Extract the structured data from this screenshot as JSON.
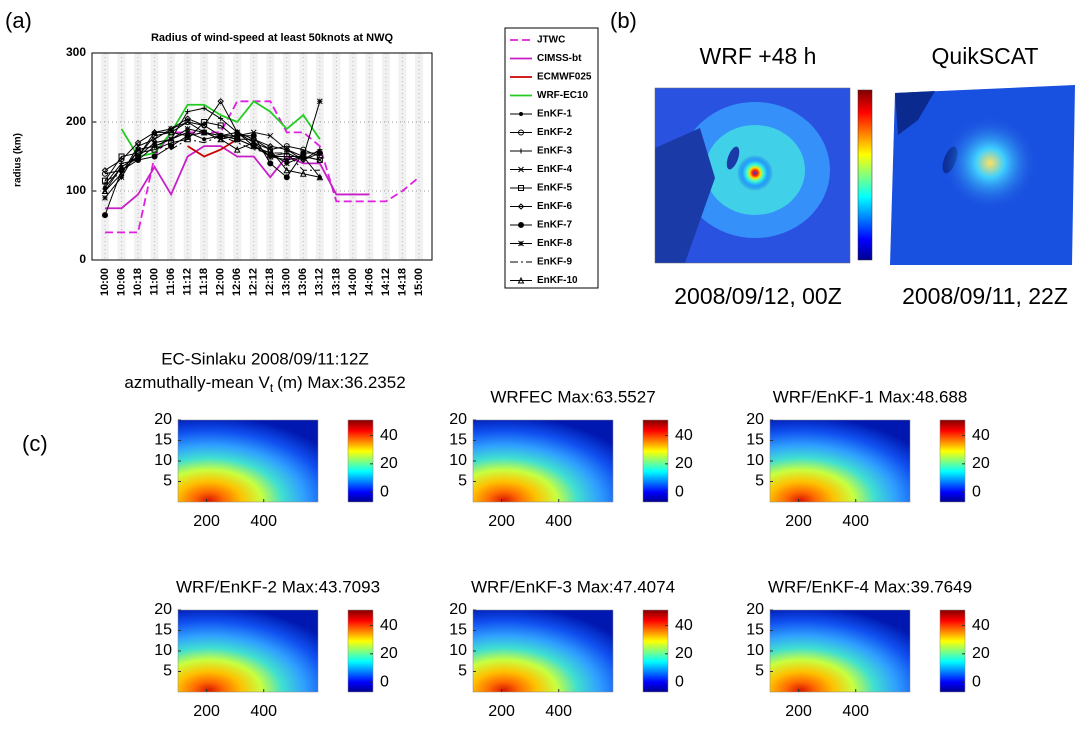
{
  "panel_labels": [
    "(a)",
    "(b)",
    "(c)"
  ],
  "chart_data": [
    {
      "type": "line",
      "title": "Radius of wind-speed at least 50knots at NWQ",
      "y_label": "radius (km)",
      "categories": [
        "10:00",
        "10:06",
        "10:18",
        "11:00",
        "11:06",
        "11:12",
        "11:18",
        "12:00",
        "12:06",
        "12:12",
        "12:18",
        "13:00",
        "13:06",
        "13:12",
        "13:18",
        "14:00",
        "14:06",
        "14:12",
        "14:18",
        "15:00"
      ],
      "ylim": [
        0,
        300
      ],
      "yticks": [
        0,
        100,
        200,
        300
      ],
      "grid": true,
      "series": [
        {
          "name": "JTWC",
          "color": "#e020e0",
          "dash": "dashed",
          "marker": "none",
          "values": [
            40,
            40,
            40,
            150,
            185,
            185,
            185,
            185,
            230,
            230,
            230,
            185,
            185,
            165,
            85,
            85,
            85,
            85,
            100,
            120
          ]
        },
        {
          "name": "CIMSS-bt",
          "color": "#c81ec8",
          "marker": "none",
          "values": [
            75,
            75,
            95,
            135,
            95,
            150,
            165,
            165,
            150,
            150,
            120,
            150,
            140,
            140,
            95,
            95,
            95,
            null,
            null,
            null
          ]
        },
        {
          "name": "ECMWF025",
          "color": "#cc0000",
          "marker": "none",
          "values": [
            null,
            null,
            null,
            null,
            null,
            165,
            150,
            160,
            175,
            null,
            null,
            null,
            null,
            null,
            null,
            null,
            null,
            null,
            null,
            null
          ]
        },
        {
          "name": "WRF-EC10",
          "color": "#22cc22",
          "marker": "none",
          "values": [
            null,
            190,
            150,
            155,
            185,
            225,
            225,
            210,
            200,
            230,
            215,
            190,
            210,
            175,
            null,
            null,
            null,
            null,
            null,
            null
          ]
        },
        {
          "name": "EnKF-1",
          "color": "#000000",
          "marker": "point",
          "values": [
            105,
            135,
            150,
            170,
            175,
            185,
            175,
            180,
            175,
            165,
            150,
            145,
            150,
            120,
            null,
            null,
            null,
            null,
            null,
            null
          ]
        },
        {
          "name": "EnKF-2",
          "color": "#000000",
          "marker": "circle",
          "values": [
            125,
            130,
            150,
            180,
            185,
            200,
            195,
            180,
            175,
            175,
            160,
            165,
            160,
            150,
            null,
            null,
            null,
            null,
            null,
            null
          ]
        },
        {
          "name": "EnKF-3",
          "color": "#000000",
          "marker": "plus",
          "values": [
            110,
            140,
            145,
            165,
            175,
            215,
            220,
            205,
            185,
            170,
            150,
            155,
            145,
            160,
            null,
            null,
            null,
            null,
            null,
            null
          ]
        },
        {
          "name": "EnKF-4",
          "color": "#000000",
          "marker": "x",
          "values": [
            100,
            125,
            165,
            175,
            190,
            200,
            185,
            175,
            180,
            185,
            180,
            160,
            150,
            145,
            null,
            null,
            null,
            null,
            null,
            null
          ]
        },
        {
          "name": "EnKF-5",
          "color": "#000000",
          "marker": "square",
          "values": [
            115,
            150,
            155,
            160,
            170,
            175,
            200,
            195,
            175,
            165,
            150,
            150,
            150,
            145,
            null,
            null,
            null,
            null,
            null,
            null
          ]
        },
        {
          "name": "EnKF-6",
          "color": "#000000",
          "marker": "diamond",
          "values": [
            130,
            145,
            170,
            185,
            190,
            205,
            195,
            230,
            185,
            175,
            165,
            160,
            145,
            155,
            null,
            null,
            null,
            null,
            null,
            null
          ]
        },
        {
          "name": "EnKF-7",
          "color": "#000000",
          "marker": "dot",
          "values": [
            65,
            130,
            145,
            150,
            165,
            180,
            185,
            180,
            180,
            180,
            140,
            120,
            155,
            155,
            null,
            null,
            null,
            null,
            null,
            null
          ]
        },
        {
          "name": "EnKF-8",
          "color": "#000000",
          "marker": "star",
          "values": [
            90,
            120,
            160,
            165,
            175,
            190,
            185,
            180,
            185,
            165,
            155,
            140,
            150,
            230,
            null,
            null,
            null,
            null,
            null,
            null
          ]
        },
        {
          "name": "EnKF-9",
          "color": "#000000",
          "dash": "dashdot",
          "marker": "none",
          "values": [
            115,
            125,
            160,
            165,
            160,
            175,
            170,
            180,
            170,
            160,
            155,
            155,
            130,
            130,
            null,
            null,
            null,
            null,
            null,
            null
          ]
        },
        {
          "name": "EnKF-10",
          "color": "#000000",
          "marker": "triangle",
          "values": [
            100,
            135,
            150,
            185,
            185,
            180,
            185,
            175,
            160,
            170,
            160,
            130,
            125,
            120,
            null,
            null,
            null,
            null,
            null,
            null
          ]
        }
      ]
    },
    {
      "type": "image",
      "title": "WRF +48 h",
      "caption": "2008/09/12, 00Z"
    },
    {
      "type": "image",
      "title": "QuikSCAT",
      "caption": "2008/09/11, 22Z"
    },
    {
      "type": "contour",
      "title": "EC-Sinlaku 2008/09/11:12Z",
      "subtitle": "azmuthally-mean V",
      "subtitle_subscript": "t",
      "subtitle_end": "(m) Max:36.2352",
      "xlim": [
        100,
        590
      ],
      "xticks": [
        200,
        400
      ],
      "ylim": [
        0,
        20
      ],
      "yticks": [
        5,
        10,
        15,
        20
      ],
      "clim": [
        -7,
        51
      ],
      "cticks": [
        0,
        20,
        40
      ]
    },
    {
      "type": "contour",
      "title": "WRFEC Max:63.5527",
      "xlim": [
        100,
        590
      ],
      "xticks": [
        200,
        400
      ],
      "ylim": [
        0,
        20
      ],
      "yticks": [
        5,
        10,
        15,
        20
      ],
      "clim": [
        -7,
        51
      ],
      "cticks": [
        0,
        20,
        40
      ]
    },
    {
      "type": "contour",
      "title": "WRF/EnKF-1 Max:48.688",
      "xlim": [
        100,
        590
      ],
      "xticks": [
        200,
        400
      ],
      "ylim": [
        0,
        20
      ],
      "yticks": [
        5,
        10,
        15,
        20
      ],
      "clim": [
        -7,
        51
      ],
      "cticks": [
        0,
        20,
        40
      ]
    },
    {
      "type": "contour",
      "title": "WRF/EnKF-2 Max:43.7093",
      "xlim": [
        100,
        590
      ],
      "xticks": [
        200,
        400
      ],
      "ylim": [
        0,
        20
      ],
      "yticks": [
        5,
        10,
        15,
        20
      ],
      "clim": [
        -7,
        51
      ],
      "cticks": [
        0,
        20,
        40
      ]
    },
    {
      "type": "contour",
      "title": "WRF/EnKF-3 Max:47.4074",
      "xlim": [
        100,
        590
      ],
      "xticks": [
        200,
        400
      ],
      "ylim": [
        0,
        20
      ],
      "yticks": [
        5,
        10,
        15,
        20
      ],
      "clim": [
        -7,
        51
      ],
      "cticks": [
        0,
        20,
        40
      ]
    },
    {
      "type": "contour",
      "title": "WRF/EnKF-4 Max:39.7649",
      "xlim": [
        100,
        590
      ],
      "xticks": [
        200,
        400
      ],
      "ylim": [
        0,
        20
      ],
      "yticks": [
        5,
        10,
        15,
        20
      ],
      "clim": [
        -7,
        51
      ],
      "cticks": [
        0,
        20,
        40
      ]
    }
  ]
}
